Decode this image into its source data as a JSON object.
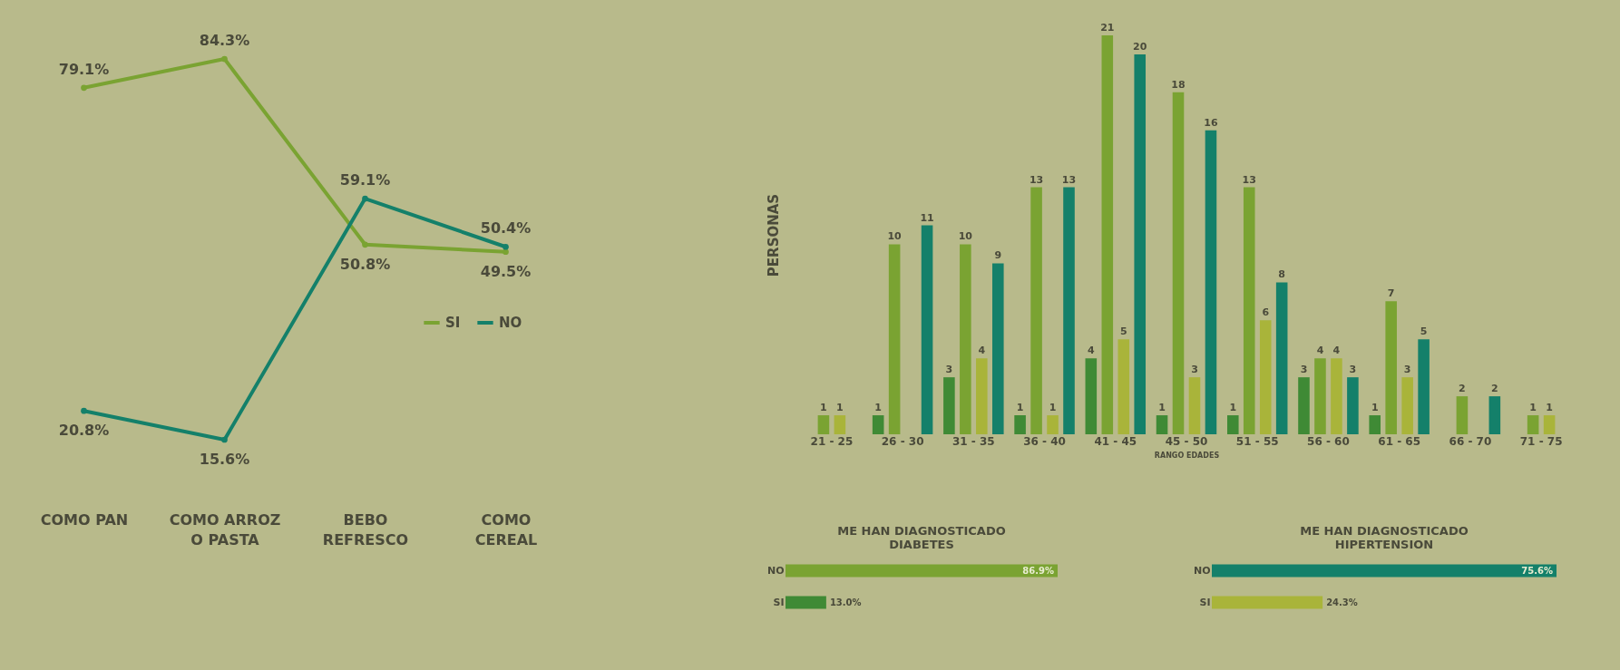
{
  "chart_data": [
    {
      "type": "line",
      "categories": [
        "COMO PAN",
        "COMO ARROZ O PASTA",
        "BEBO REFRESCO",
        "COMO CEREAL"
      ],
      "legend": "right",
      "marker": "circle",
      "tick_labels": "x",
      "series": [
        {
          "name": "SI",
          "color": "#7aa332",
          "values": [
            79.1,
            84.3,
            50.8,
            49.5
          ],
          "value_labels": [
            "79.1%",
            "84.3%",
            "50.8%",
            "49.5%"
          ]
        },
        {
          "name": "NO",
          "color": "#14806a",
          "values": [
            20.8,
            15.6,
            59.1,
            50.4
          ],
          "value_labels": [
            "20.8%",
            "15.6%",
            "59.1%",
            "50.4%"
          ]
        }
      ]
    },
    {
      "type": "bar",
      "xlabel": "RANGO EDADES",
      "ylabel": "PERSONAS",
      "data_labels": true,
      "tick_labels": "x",
      "categories": [
        "21 - 25",
        "26 - 30",
        "31 - 35",
        "36 - 40",
        "41 - 45",
        "45 - 50",
        "51 - 55",
        "56 - 60",
        "61 - 65",
        "66 - 70",
        "71 - 75"
      ],
      "series": [
        {
          "color": "#3f8a35",
          "values": [
            null,
            1,
            3,
            1,
            4,
            1,
            1,
            3,
            1,
            null,
            null
          ]
        },
        {
          "color": "#7aa332",
          "values": [
            1,
            10,
            10,
            13,
            21,
            18,
            13,
            4,
            7,
            2,
            1
          ]
        },
        {
          "color": "#a9b43a",
          "values": [
            1,
            null,
            4,
            1,
            5,
            3,
            6,
            4,
            3,
            null,
            1
          ]
        },
        {
          "color": "#14806a",
          "values": [
            null,
            11,
            9,
            13,
            20,
            16,
            8,
            3,
            5,
            2,
            null
          ]
        }
      ]
    },
    {
      "type": "bar",
      "orientation": "horizontal",
      "title": "ME HAN DIAGNOSTICADO DIABETES",
      "categories": [
        "NO",
        "SI"
      ],
      "values": [
        86.9,
        13.0
      ],
      "colors": [
        "#7aa332",
        "#3f8a35"
      ],
      "value_labels": [
        "86.9%",
        "13.0%"
      ],
      "tick_labels": "y"
    },
    {
      "type": "bar",
      "orientation": "horizontal",
      "title": "ME HAN DIAGNOSTICADO HIPERTENSION",
      "categories": [
        "NO",
        "SI"
      ],
      "values": [
        75.6,
        24.3
      ],
      "colors": [
        "#14806a",
        "#a9b43a"
      ],
      "value_labels": [
        "75.6%",
        "24.3%"
      ],
      "tick_labels": "y"
    }
  ]
}
